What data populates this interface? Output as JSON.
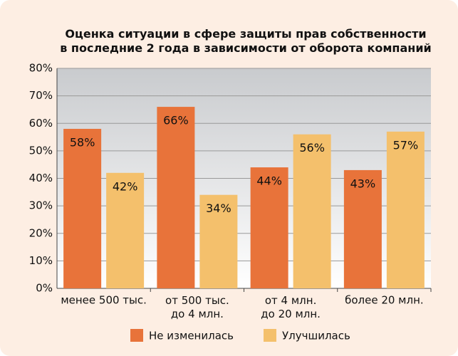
{
  "chart_data": {
    "type": "bar",
    "title": "Оценка ситуации в сфере защиты прав собственности\nв последние 2 года в зависимости от оборота компаний",
    "categories": [
      "менее 500 тыс.",
      "от 500 тыс.\nдо 4 млн.",
      "от 4 млн.\nдо 20 млн.",
      "более 20 млн."
    ],
    "series": [
      {
        "name": "Не изменилась",
        "color": "#e8733a",
        "values": [
          58,
          66,
          44,
          43
        ],
        "value_labels": [
          "58%",
          "66%",
          "44%",
          "43%"
        ]
      },
      {
        "name": "Улучшилась",
        "color": "#f4c06c",
        "values": [
          42,
          34,
          56,
          57
        ],
        "value_labels": [
          "42%",
          "34%",
          "56%",
          "57%"
        ]
      }
    ],
    "ylim": [
      0,
      80
    ],
    "yticks": [
      {
        "value": 0,
        "label": "0%"
      },
      {
        "value": 10,
        "label": "10%"
      },
      {
        "value": 20,
        "label": "20%"
      },
      {
        "value": 30,
        "label": "30%"
      },
      {
        "value": 40,
        "label": "40%"
      },
      {
        "value": 50,
        "label": "50%"
      },
      {
        "value": 60,
        "label": "60%"
      },
      {
        "value": 70,
        "label": "70%"
      },
      {
        "value": 80,
        "label": "80%"
      }
    ],
    "grid": true,
    "legend": "bottom"
  }
}
